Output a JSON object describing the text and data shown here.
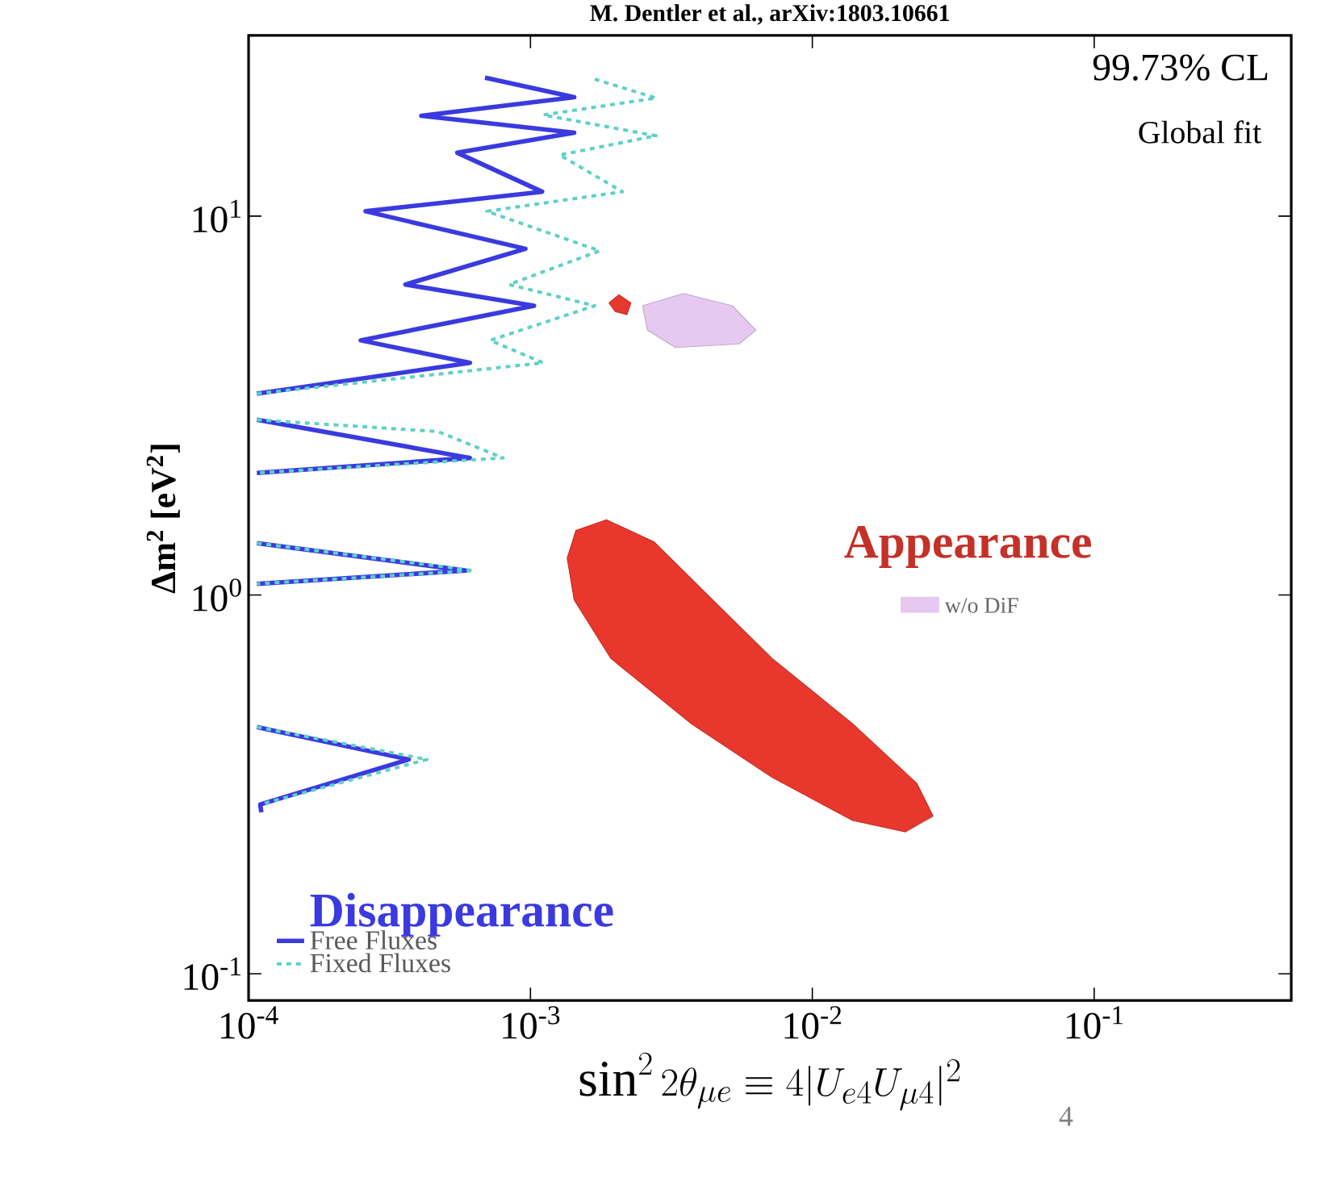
{
  "chart_data": {
    "type": "line",
    "log": "xy",
    "legend": "bottom left",
    "legend_title": "Disappearance",
    "xlabel": "\\sin^2 2\\theta_{\\mu e} \\equiv 4|U_{e4}U_{\\mu 4}|^2",
    "ylabel": "Δm$^{2}$ [eV$^{2}$]",
    "xlim": [
      0.0001,
      0.5
    ],
    "ylim": [
      0.085,
      30
    ],
    "xticks": [
      {
        "value": 0.0001,
        "label": "10$^{-4}$"
      },
      {
        "value": 0.001,
        "label": "10$^{-3}$"
      },
      {
        "value": 0.01,
        "label": "10$^{-2}$"
      },
      {
        "value": 0.1,
        "label": "10$^{-1}$"
      }
    ],
    "yticks": [
      {
        "value": 0.1,
        "label": "10$^{-1}$"
      },
      {
        "value": 1,
        "label": "10$^{0}$"
      },
      {
        "value": 10,
        "label": "10$^{1}$"
      }
    ],
    "annotations": [
      "M. Dentler et al., arXiv:1803.10661",
      "99.73% CL",
      "Global fit",
      "4"
    ],
    "series": [
      {
        "name": "Free Fluxes",
        "type": "line",
        "line_style": "solid",
        "color": "#3a3ae0",
        "x": [
          0.00069,
          0.00143,
          0.00041,
          0.00143,
          0.00055,
          0.0011,
          0.00026,
          0.00096,
          0.00036,
          0.00103,
          0.00025,
          0.00061,
          0.000107,
          null,
          0.000107,
          0.00061,
          0.000107,
          null,
          0.000107,
          0.00059,
          0.000107,
          null,
          0.000107,
          0.00037,
          0.00011,
          0.000111
        ],
        "values": [
          23.2,
          20.6,
          18.4,
          16.6,
          14.7,
          11.6,
          10.3,
          8.2,
          6.6,
          5.8,
          4.7,
          4.1,
          3.4,
          null,
          2.9,
          2.3,
          2.1,
          null,
          1.37,
          1.16,
          1.07,
          null,
          0.448,
          0.368,
          0.28,
          0.267
        ]
      },
      {
        "name": "Fixed Fluxes",
        "type": "line",
        "line_style": "dashed",
        "color": "#5fd0c8",
        "x": [
          0.00169,
          0.00279,
          0.00111,
          0.00279,
          0.00127,
          0.00212,
          0.0007,
          0.00176,
          0.00084,
          0.00169,
          0.00072,
          0.00111,
          0.000107,
          null,
          0.000107,
          0.00047,
          0.0008,
          0.000107,
          null,
          0.000107,
          0.00063,
          0.000107,
          null,
          0.000107,
          0.00043,
          0.00011
        ],
        "values": [
          23.0,
          20.5,
          18.5,
          16.3,
          14.5,
          11.6,
          10.3,
          8.1,
          6.6,
          5.8,
          4.7,
          4.1,
          3.4,
          null,
          2.9,
          2.7,
          2.3,
          2.1,
          null,
          1.37,
          1.16,
          1.07,
          null,
          0.448,
          0.368,
          0.28
        ]
      },
      {
        "name": "Appearance",
        "type": "area",
        "color": "#e8382e",
        "x": [
          0.00145,
          0.00186,
          0.00275,
          0.00425,
          0.0072,
          0.0139,
          0.0235,
          0.0268,
          0.0214,
          0.0139,
          0.0072,
          0.00373,
          0.00193,
          0.00143,
          0.00135,
          null,
          0.0019,
          0.00206,
          0.00227,
          0.0022,
          0.002
        ],
        "values": [
          1.48,
          1.58,
          1.38,
          1.0,
          0.68,
          0.457,
          0.318,
          0.261,
          0.237,
          0.254,
          0.33,
          0.457,
          0.68,
          0.97,
          1.25,
          null,
          5.9,
          6.2,
          5.9,
          5.5,
          5.6
        ]
      },
      {
        "name": "w/o DiF",
        "type": "area",
        "color": "#e6c8f0",
        "x": [
          0.0025,
          0.00349,
          0.0052,
          0.0063,
          0.0055,
          0.00327,
          0.0026
        ],
        "values": [
          5.8,
          6.25,
          5.8,
          5.0,
          4.6,
          4.5,
          5.0
        ]
      }
    ]
  }
}
